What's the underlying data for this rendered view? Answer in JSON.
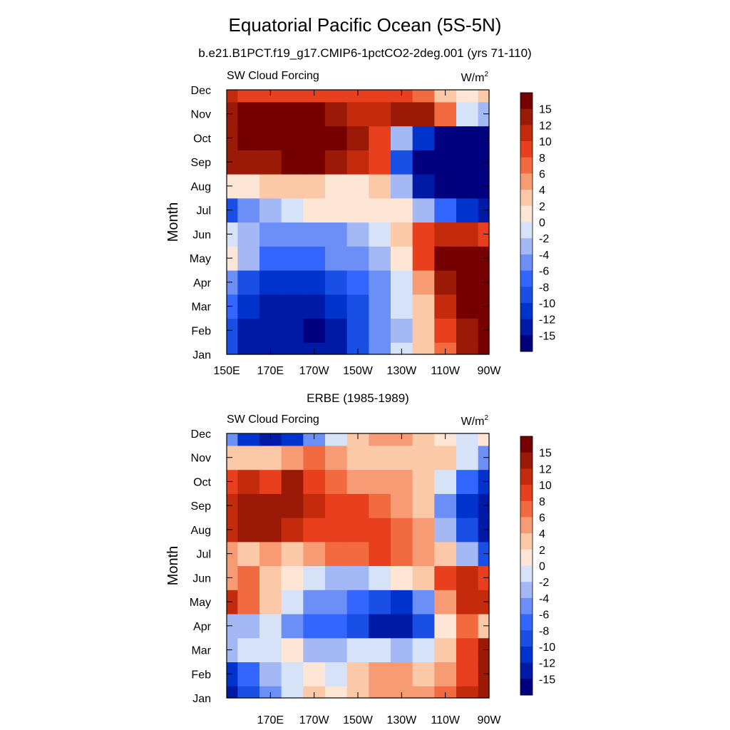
{
  "figure": {
    "title": "Equatorial Pacific Ocean (5S-5N)",
    "subtitle": "b.e21.B1PCT.f19_g17.CMIP6-1pctCO2-2deg.001 (yrs 71-110)"
  },
  "colorbar": {
    "levels": [
      -15,
      -12,
      -10,
      -8,
      -6,
      -4,
      -2,
      0,
      2,
      4,
      6,
      8,
      10,
      12,
      15
    ],
    "colors": [
      "#00007f",
      "#001aa6",
      "#0033cc",
      "#1a4fe6",
      "#3366ff",
      "#6b8ff7",
      "#a3b8f5",
      "#d6e2f7",
      "#fde6d6",
      "#fbc8a8",
      "#f79b74",
      "#f26a3f",
      "#e8401f",
      "#c42a0c",
      "#9a1a07",
      "#760000"
    ],
    "tick_labels": [
      "15",
      "12",
      "10",
      "8",
      "6",
      "4",
      "2",
      "0",
      "-2",
      "-4",
      "-6",
      "-8",
      "-10",
      "-12",
      "-15"
    ]
  },
  "chart_data": [
    {
      "type": "heatmap",
      "panel_title": "",
      "left_label": "SW Cloud Forcing",
      "units": "W/m",
      "units_sup": "2",
      "ylabel": "Month",
      "y_tick_labels": [
        "Jan",
        "Feb",
        "Mar",
        "Apr",
        "May",
        "Jun",
        "Jul",
        "Aug",
        "Sep",
        "Oct",
        "Nov",
        "Dec"
      ],
      "x_tick_labels": [
        "150E",
        "170E",
        "170W",
        "150W",
        "130W",
        "110W",
        "90W"
      ],
      "x_values_deg_east": [
        150,
        170,
        190,
        210,
        230,
        250,
        270
      ],
      "xlim_deg_east": [
        150,
        270
      ],
      "months": [
        "Jan",
        "Feb",
        "Mar",
        "Apr",
        "May",
        "Jun",
        "Jul",
        "Aug",
        "Sep",
        "Oct",
        "Nov",
        "Dec"
      ],
      "grid_lon_deg_east": [
        150,
        160,
        170,
        180,
        190,
        200,
        210,
        220,
        230,
        240,
        250,
        260,
        270
      ],
      "values": [
        [
          -10,
          -14,
          -15,
          -15,
          -15,
          -13,
          -10,
          -6,
          -2,
          2,
          6,
          12,
          16
        ],
        [
          -10,
          -14,
          -15,
          -15,
          -16,
          -14,
          -10,
          -6,
          -3,
          2,
          8,
          14,
          17
        ],
        [
          -8,
          -11,
          -13,
          -14,
          -14,
          -12,
          -9,
          -5,
          -2,
          3,
          10,
          16,
          17
        ],
        [
          -6,
          -9,
          -11,
          -12,
          -12,
          -10,
          -8,
          -5,
          -2,
          4,
          12,
          17,
          17
        ],
        [
          1,
          -4,
          -7,
          -8,
          -7,
          -6,
          -5,
          -3,
          0,
          8,
          16,
          16,
          16
        ],
        [
          -2,
          -4,
          -6,
          -6,
          -5,
          -5,
          -4,
          -2,
          2,
          8,
          10,
          10,
          8
        ],
        [
          -9,
          -5,
          -3,
          -1,
          0,
          0,
          1,
          1,
          0,
          -4,
          -8,
          -12,
          -14
        ],
        [
          0,
          0,
          2,
          3,
          2,
          1,
          1,
          2,
          -4,
          -14,
          -18,
          -18,
          -18
        ],
        [
          12,
          12,
          14,
          15,
          15,
          14,
          11,
          8,
          -10,
          -16,
          -18,
          -18,
          -18
        ],
        [
          13,
          16,
          18,
          19,
          19,
          17,
          13,
          8,
          -4,
          -12,
          -16,
          -18,
          -18
        ],
        [
          12,
          15,
          17,
          17,
          15,
          12,
          10,
          10,
          12,
          12,
          6,
          -2,
          -4
        ],
        [
          10,
          9,
          8,
          8,
          9,
          9,
          8,
          8,
          9,
          7,
          2,
          0,
          3
        ]
      ]
    },
    {
      "type": "heatmap",
      "panel_title": "ERBE (1985-1989)",
      "left_label": "SW Cloud Forcing",
      "units": "W/m",
      "units_sup": "2",
      "ylabel": "Month",
      "y_tick_labels": [
        "Jan",
        "Feb",
        "Mar",
        "Apr",
        "May",
        "Jun",
        "Jul",
        "Aug",
        "Sep",
        "Oct",
        "Nov",
        "Dec"
      ],
      "x_tick_labels": [
        "170E",
        "170W",
        "150W",
        "130W",
        "110W",
        "90W"
      ],
      "x_values_deg_east": [
        170,
        190,
        210,
        230,
        250,
        270
      ],
      "xlim_deg_east": [
        150,
        270
      ],
      "months": [
        "Jan",
        "Feb",
        "Mar",
        "Apr",
        "May",
        "Jun",
        "Jul",
        "Aug",
        "Sep",
        "Oct",
        "Nov",
        "Dec"
      ],
      "grid_lon_deg_east": [
        150,
        160,
        170,
        180,
        190,
        200,
        210,
        220,
        230,
        240,
        250,
        260,
        270
      ],
      "values": [
        [
          -14,
          -10,
          -6,
          -2,
          2,
          0,
          2,
          4,
          4,
          4,
          6,
          10,
          14
        ],
        [
          -12,
          -8,
          -4,
          -2,
          0,
          -2,
          2,
          4,
          4,
          2,
          4,
          8,
          14
        ],
        [
          -3,
          -2,
          -1,
          0,
          -4,
          -4,
          -2,
          -2,
          -4,
          -2,
          2,
          8,
          14
        ],
        [
          -4,
          -4,
          -2,
          -6,
          -8,
          -8,
          -10,
          -13,
          -14,
          -10,
          1,
          6,
          2
        ],
        [
          10,
          6,
          2,
          -2,
          -6,
          -5,
          -8,
          -10,
          -11,
          -6,
          4,
          10,
          10
        ],
        [
          4,
          6,
          3,
          0,
          -1,
          -4,
          -3,
          -2,
          0,
          2,
          8,
          10,
          9
        ],
        [
          4,
          2,
          5,
          2,
          5,
          6,
          7,
          8,
          6,
          4,
          2,
          -4,
          -10
        ],
        [
          10,
          12,
          13,
          10,
          9,
          9,
          8,
          8,
          6,
          4,
          -4,
          -10,
          -14
        ],
        [
          10,
          13,
          12,
          12,
          10,
          9,
          8,
          7,
          5,
          2,
          -6,
          -12,
          -15
        ],
        [
          9,
          10,
          9,
          12,
          8,
          6,
          5,
          5,
          5,
          3,
          -2,
          -8,
          -12
        ],
        [
          2,
          3,
          2,
          4,
          6,
          4,
          3,
          2,
          2,
          3,
          2,
          -2,
          -6
        ],
        [
          -6,
          -12,
          -15,
          -12,
          -6,
          -2,
          2,
          4,
          4,
          3,
          1,
          -2,
          1
        ]
      ]
    }
  ]
}
